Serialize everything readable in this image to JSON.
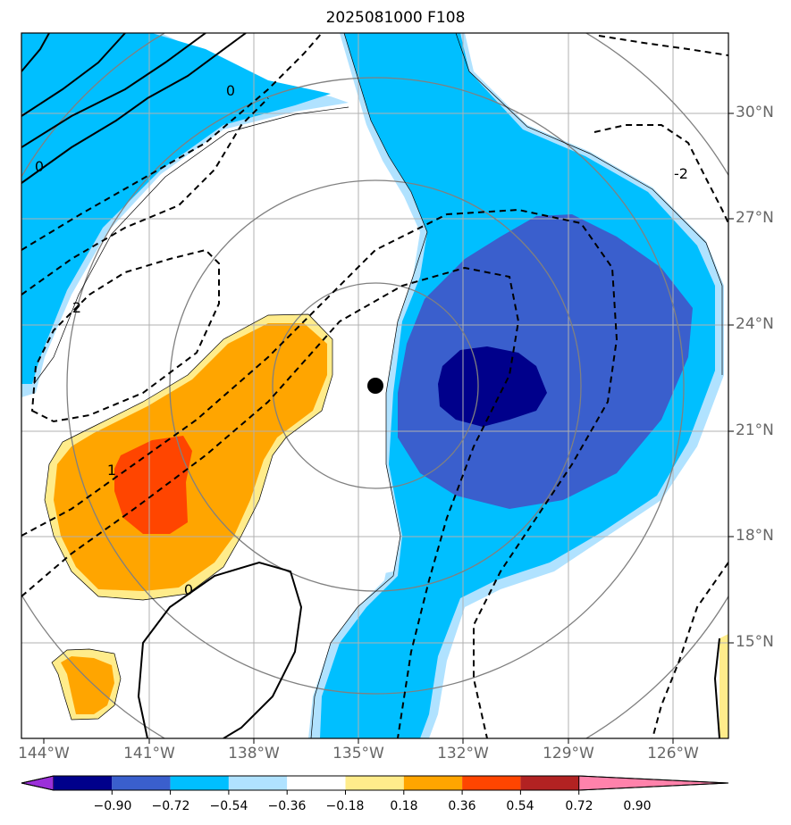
{
  "title": "2025081000 F108",
  "lon_labels": [
    "144°W",
    "141°W",
    "138°W",
    "135°W",
    "132°W",
    "129°W",
    "126°W"
  ],
  "lat_labels": [
    "30°N",
    "27°N",
    "24°N",
    "21°N",
    "18°N",
    "15°N"
  ],
  "contour_labels": [
    "0",
    "0",
    "2",
    "-2",
    "1",
    "0"
  ],
  "colorbar": {
    "ticks": [
      "−0.90",
      "−0.72",
      "−0.54",
      "−0.36",
      "−0.18",
      "0.18",
      "0.36",
      "0.54",
      "0.72",
      "0.90"
    ],
    "colors": [
      "#9b30d9",
      "#00008b",
      "#3a5fcd",
      "#00bfff",
      "#b0e2ff",
      "#ffffff",
      "#ffec8b",
      "#ffa500",
      "#ff4500",
      "#b22222",
      "#ff82ab"
    ]
  },
  "center_marker": {
    "lon": -134.6,
    "lat": 22.3
  }
}
